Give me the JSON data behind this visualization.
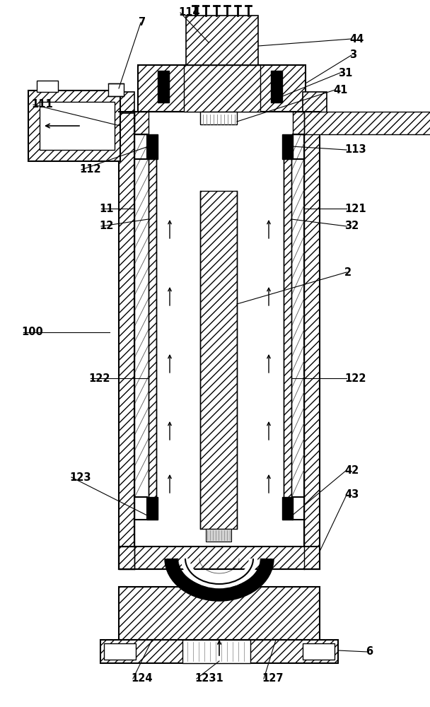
{
  "bg_color": "#ffffff",
  "lc": "#000000",
  "figsize": [
    6.08,
    10.0
  ],
  "dpi": 100,
  "label_color": "#000000",
  "label_fontsize": 10.5,
  "label_fontweight": "bold",
  "label_fontfamily": "Arial"
}
